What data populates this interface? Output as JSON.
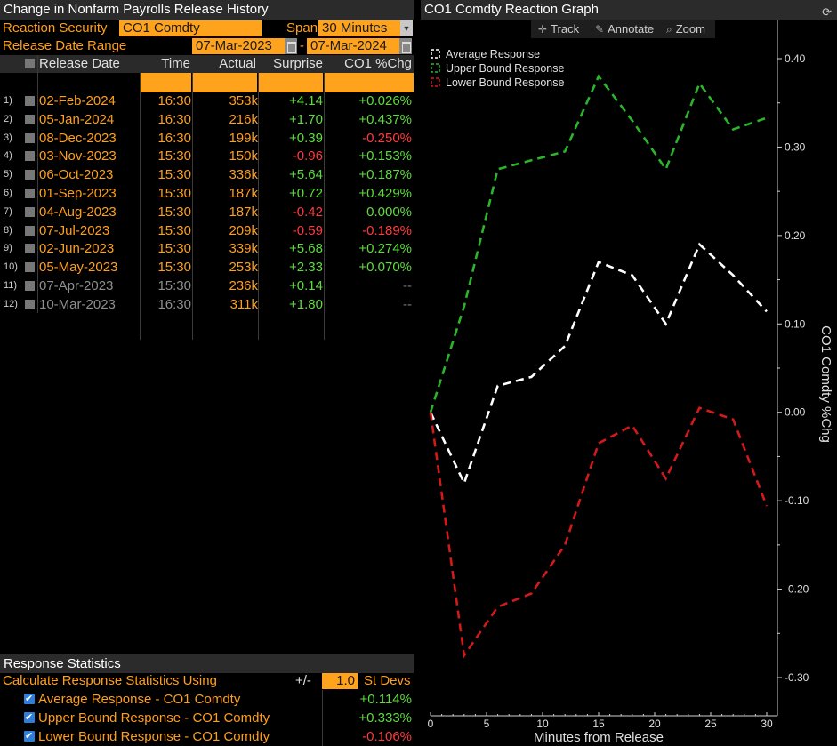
{
  "left_title": "Change in Nonfarm Payrolls Release History",
  "reaction_security_label": "Reaction Security",
  "reaction_security_value": "CO1 Comdty",
  "span_label": "Span",
  "span_value": "30 Minutes",
  "release_range_label": "Release Date Range",
  "range_start": "07-Mar-2023",
  "range_sep": "-",
  "range_end": "07-Mar-2024",
  "table": {
    "headers": [
      "Release Date",
      "Time",
      "Actual",
      "Surprise",
      "CO1 %Chg"
    ],
    "rows": [
      {
        "num": "1)",
        "date": "02-Feb-2024",
        "time": "16:30",
        "actual": "353k",
        "surprise": "+4.14",
        "chg": "+0.026%",
        "chg_sign": "pos",
        "sur_sign": "pos",
        "dim": false
      },
      {
        "num": "2)",
        "date": "05-Jan-2024",
        "time": "16:30",
        "actual": "216k",
        "surprise": "+1.70",
        "chg": "+0.437%",
        "chg_sign": "pos",
        "sur_sign": "pos",
        "dim": false
      },
      {
        "num": "3)",
        "date": "08-Dec-2023",
        "time": "16:30",
        "actual": "199k",
        "surprise": "+0.39",
        "chg": "-0.250%",
        "chg_sign": "neg",
        "sur_sign": "pos",
        "dim": false
      },
      {
        "num": "4)",
        "date": "03-Nov-2023",
        "time": "15:30",
        "actual": "150k",
        "surprise": "-0.96",
        "chg": "+0.153%",
        "chg_sign": "pos",
        "sur_sign": "neg",
        "dim": false
      },
      {
        "num": "5)",
        "date": "06-Oct-2023",
        "time": "15:30",
        "actual": "336k",
        "surprise": "+5.64",
        "chg": "+0.187%",
        "chg_sign": "pos",
        "sur_sign": "pos",
        "dim": false
      },
      {
        "num": "6)",
        "date": "01-Sep-2023",
        "time": "15:30",
        "actual": "187k",
        "surprise": "+0.72",
        "chg": "+0.429%",
        "chg_sign": "pos",
        "sur_sign": "pos",
        "dim": false
      },
      {
        "num": "7)",
        "date": "04-Aug-2023",
        "time": "15:30",
        "actual": "187k",
        "surprise": "-0.42",
        "chg": "0.000%",
        "chg_sign": "neu",
        "sur_sign": "neg",
        "dim": false
      },
      {
        "num": "8)",
        "date": "07-Jul-2023",
        "time": "15:30",
        "actual": "209k",
        "surprise": "-0.59",
        "chg": "-0.189%",
        "chg_sign": "neg",
        "sur_sign": "neg",
        "dim": false
      },
      {
        "num": "9)",
        "date": "02-Jun-2023",
        "time": "15:30",
        "actual": "339k",
        "surprise": "+5.68",
        "chg": "+0.274%",
        "chg_sign": "pos",
        "sur_sign": "pos",
        "dim": false
      },
      {
        "num": "10)",
        "date": "05-May-2023",
        "time": "15:30",
        "actual": "253k",
        "surprise": "+2.33",
        "chg": "+0.070%",
        "chg_sign": "pos",
        "sur_sign": "pos",
        "dim": false
      },
      {
        "num": "11)",
        "date": "07-Apr-2023",
        "time": "15:30",
        "actual": "236k",
        "surprise": "+0.14",
        "chg": "--",
        "chg_sign": "dash",
        "sur_sign": "pos",
        "dim": true
      },
      {
        "num": "12)",
        "date": "10-Mar-2023",
        "time": "16:30",
        "actual": "311k",
        "surprise": "+1.80",
        "chg": "--",
        "chg_sign": "dash",
        "sur_sign": "pos",
        "dim": true
      }
    ]
  },
  "stats": {
    "title": "Response Statistics",
    "calc_label": "Calculate Response Statistics Using",
    "pm_label": "+/-",
    "std_value": "1.0",
    "std_label": "St Devs",
    "items": [
      {
        "name": "Average Response - CO1 Comdty",
        "value": "+0.114%",
        "sign": "pos"
      },
      {
        "name": "Upper Bound Response - CO1 Comdty",
        "value": "+0.333%",
        "sign": "pos"
      },
      {
        "name": "Lower Bound Response - CO1 Comdty",
        "value": "-0.106%",
        "sign": "neg"
      }
    ]
  },
  "graph": {
    "title": "CO1 Comdty Reaction Graph",
    "tools": [
      "Track",
      "Annotate",
      "Zoom"
    ]
  },
  "chart_data": {
    "type": "line",
    "xlabel": "Minutes from Release",
    "ylabel": "CO1 Comdty %Chg",
    "xlim": [
      0,
      30
    ],
    "ylim": [
      -0.3,
      0.4
    ],
    "x_ticks": [
      0,
      5,
      10,
      15,
      20,
      25,
      30
    ],
    "y_ticks": [
      0.4,
      0.3,
      0.2,
      0.1,
      0.0,
      -0.1,
      -0.2,
      -0.3
    ],
    "y_tick_labels": [
      "0.40",
      "0.30",
      "0.20",
      "0.10",
      "0.00",
      "-0.10",
      "-0.20",
      "-0.30"
    ],
    "legend_position": "top-left",
    "grid": false,
    "x": [
      0,
      3,
      6,
      9,
      12,
      15,
      18,
      21,
      24,
      27,
      30
    ],
    "series": [
      {
        "name": "Average Response",
        "color": "#ffffff",
        "values": [
          0.0,
          -0.08,
          0.03,
          0.04,
          0.075,
          0.17,
          0.155,
          0.1,
          0.19,
          0.155,
          0.114
        ]
      },
      {
        "name": "Upper Bound Response",
        "color": "#2bb52b",
        "values": [
          0.0,
          0.12,
          0.275,
          0.285,
          0.295,
          0.38,
          0.33,
          0.275,
          0.372,
          0.32,
          0.333
        ]
      },
      {
        "name": "Lower Bound Response",
        "color": "#d11a1a",
        "values": [
          0.0,
          -0.275,
          -0.22,
          -0.205,
          -0.15,
          -0.035,
          -0.015,
          -0.075,
          0.005,
          -0.008,
          -0.106
        ]
      }
    ]
  }
}
